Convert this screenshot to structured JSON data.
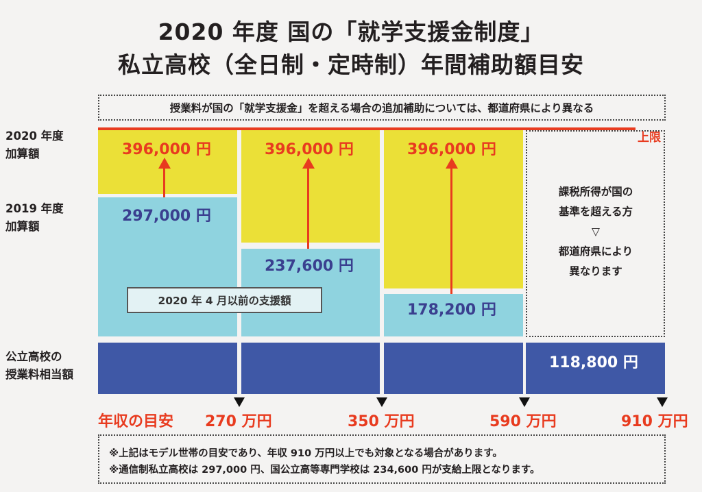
{
  "title": {
    "line1": "2020 年度 国の「就学支援金制度」",
    "line2": "私立高校（全日制・定時制）年間補助額目安"
  },
  "top_note": "授業料が国の「就学支援金」を超える場合の追加補助については、都道府県により異なる",
  "upper_limit_label": "上限",
  "row_labels": {
    "add_2020": [
      "2020 年度",
      "加算額"
    ],
    "add_2019": [
      "2019 年度",
      "加算額"
    ],
    "public_equiv": [
      "公立高校の",
      "授業料相当額"
    ]
  },
  "columns": [
    {
      "amount_2020": "396,000 円",
      "amount_2019": "297,000 円"
    },
    {
      "amount_2020": "396,000 円",
      "amount_2019": "237,600 円"
    },
    {
      "amount_2020": "396,000 円",
      "amount_2019": "178,200 円"
    }
  ],
  "public_amount": "118,800 円",
  "over_limit_text": [
    "課税所得が国の",
    "基準を超える方",
    "▽",
    "都道府県により",
    "異なります"
  ],
  "before_label": "2020 年 4 月以前の支援額",
  "income": {
    "label": "年収の目安",
    "thresholds": [
      "270 万円",
      "350 万円",
      "590 万円",
      "910 万円"
    ]
  },
  "footnotes": [
    "※上記はモデル世帯の目安であり、年収 910 万円以上でも対象となる場合があります。",
    "※通信制私立高校は 297,000 円、国公立高等専門学校は 234,600 円が支給上限となります。"
  ],
  "colors": {
    "yellow": "#ebe037",
    "cyan": "#8fd3df",
    "navy": "#3f58a6",
    "red": "#e83b1f"
  }
}
